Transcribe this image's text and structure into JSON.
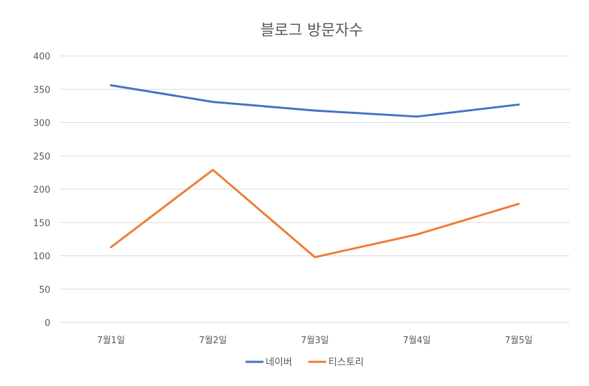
{
  "chart_data": {
    "type": "line",
    "title": "블로그 방문자수",
    "categories": [
      "7월1일",
      "7월2일",
      "7월3일",
      "7월4일",
      "7월5일"
    ],
    "series": [
      {
        "name": "네이버",
        "values": [
          356,
          331,
          318,
          309,
          327
        ],
        "color": "#4472c4"
      },
      {
        "name": "티스토리",
        "values": [
          113,
          229,
          98,
          132,
          178
        ],
        "color": "#ed7d31"
      }
    ],
    "ylim": [
      0,
      400
    ],
    "yticks": [
      0,
      50,
      100,
      150,
      200,
      250,
      300,
      350,
      400
    ],
    "grid": true,
    "legend_position": "bottom"
  }
}
